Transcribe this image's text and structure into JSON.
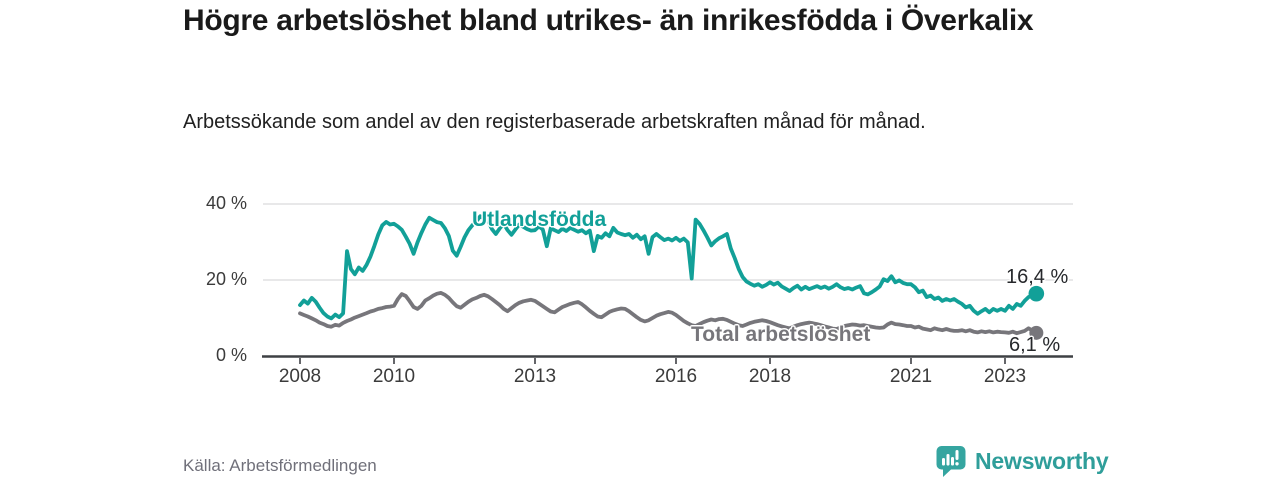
{
  "header": {
    "title": "Högre arbetslöshet bland utrikes- än inrikesfödda i Överkalix",
    "subtitle": "Arbetssökande som andel av den registerbaserade arbetskraften månad för månad."
  },
  "footer": {
    "source": "Källa: Arbetsförmedlingen",
    "brand": "Newsworthy",
    "brand_color": "#2f9e9a"
  },
  "chart_data": {
    "type": "line",
    "title": "Högre arbetslöshet bland utrikes- än inrikesfödda i Överkalix",
    "xlabel": "",
    "ylabel": "",
    "grid": "horizontal",
    "legend_position": "inline-labels",
    "ylim": [
      0,
      43
    ],
    "y_ticks": [
      {
        "label": "0 %",
        "value": 0
      },
      {
        "label": "20 %",
        "value": 20
      },
      {
        "label": "40 %",
        "value": 40
      }
    ],
    "x_ticks": [
      {
        "label": "2008",
        "year": 2008
      },
      {
        "label": "2010",
        "year": 2010
      },
      {
        "label": "2013",
        "year": 2013
      },
      {
        "label": "2016",
        "year": 2016
      },
      {
        "label": "2018",
        "year": 2018
      },
      {
        "label": "2021",
        "year": 2021
      },
      {
        "label": "2023",
        "year": 2023
      }
    ],
    "start_year": 2008,
    "points_per_year": 12,
    "series": [
      {
        "name": "Utlandsfödda",
        "color": "#12a098",
        "end_label": "16,4 %",
        "end_value": 16.4,
        "values": [
          13.4,
          14.6,
          13.8,
          15.3,
          14.3,
          12.7,
          11.3,
          10.4,
          9.9,
          10.9,
          10.2,
          11.2,
          27.6,
          22.9,
          21.5,
          23.3,
          22.4,
          24.0,
          26.2,
          29.0,
          32.0,
          34.4,
          35.3,
          34.6,
          34.8,
          34.1,
          33.2,
          31.4,
          29.5,
          26.9,
          29.9,
          32.4,
          34.6,
          36.4,
          35.8,
          35.2,
          35.0,
          33.6,
          31.6,
          27.7,
          26.4,
          28.7,
          31.2,
          33.1,
          34.4,
          35.4,
          36.8,
          36.1,
          35.5,
          33.4,
          32.1,
          33.6,
          34.8,
          33.1,
          31.9,
          33.3,
          34.6,
          34.0,
          33.4,
          33.0,
          33.1,
          34.1,
          33.3,
          28.9,
          33.6,
          33.1,
          32.6,
          33.5,
          32.9,
          33.7,
          33.2,
          32.7,
          33.1,
          32.3,
          33.0,
          27.6,
          31.6,
          31.1,
          32.3,
          31.5,
          33.7,
          32.5,
          32.1,
          31.8,
          32.1,
          31.1,
          31.9,
          30.7,
          31.5,
          26.9,
          31.3,
          32.1,
          31.3,
          30.5,
          30.9,
          30.4,
          31.1,
          30.3,
          30.9,
          29.9,
          20.4,
          35.9,
          34.8,
          33.1,
          31.2,
          29.1,
          30.2,
          31.0,
          31.5,
          32.1,
          28.3,
          25.7,
          22.9,
          20.8,
          19.6,
          19.0,
          18.5,
          18.9,
          18.2,
          18.7,
          19.4,
          18.8,
          19.3,
          18.3,
          17.7,
          17.1,
          17.9,
          18.5,
          17.5,
          18.2,
          17.6,
          18.0,
          18.4,
          17.9,
          18.3,
          17.7,
          18.2,
          18.9,
          18.1,
          17.6,
          17.9,
          17.5,
          18.0,
          18.4,
          16.5,
          16.2,
          16.8,
          17.5,
          18.3,
          20.2,
          19.7,
          21.0,
          19.4,
          19.9,
          19.2,
          18.9,
          18.9,
          18.1,
          16.8,
          17.2,
          15.5,
          15.9,
          15.0,
          15.4,
          14.5,
          15.0,
          14.6,
          15.0,
          14.3,
          13.7,
          12.8,
          13.2,
          11.9,
          11.1,
          11.8,
          12.4,
          11.5,
          12.4,
          11.9,
          12.4,
          11.9,
          13.2,
          12.4,
          13.7,
          13.2,
          14.5,
          15.5,
          16.0,
          16.4
        ]
      },
      {
        "name": "Total arbetslöshet",
        "color": "#77767b",
        "end_label": "6,1 %",
        "end_value": 6.1,
        "values": [
          11.2,
          10.8,
          10.4,
          9.9,
          9.4,
          8.8,
          8.4,
          7.9,
          7.7,
          8.2,
          8.0,
          8.7,
          9.2,
          9.6,
          10.1,
          10.5,
          10.9,
          11.3,
          11.7,
          12.0,
          12.4,
          12.6,
          12.9,
          13.0,
          13.2,
          15.0,
          16.3,
          15.8,
          14.4,
          12.9,
          12.4,
          13.2,
          14.6,
          15.2,
          15.9,
          16.4,
          16.6,
          16.1,
          15.3,
          14.1,
          13.1,
          12.7,
          13.5,
          14.3,
          14.9,
          15.3,
          15.8,
          16.1,
          15.7,
          15.0,
          14.2,
          13.4,
          12.4,
          11.8,
          12.6,
          13.4,
          14.0,
          14.4,
          14.6,
          14.8,
          14.5,
          13.8,
          13.1,
          12.4,
          11.7,
          11.5,
          12.2,
          12.9,
          13.3,
          13.7,
          14.0,
          14.2,
          13.6,
          12.8,
          11.9,
          11.1,
          10.4,
          10.2,
          10.9,
          11.6,
          12.0,
          12.3,
          12.5,
          12.4,
          11.8,
          11.0,
          10.2,
          9.5,
          9.1,
          9.4,
          10.0,
          10.6,
          11.0,
          11.3,
          11.6,
          11.4,
          10.8,
          10.0,
          9.2,
          8.6,
          8.1,
          7.9,
          8.4,
          8.9,
          9.3,
          9.6,
          9.4,
          9.7,
          9.8,
          9.5,
          9.0,
          8.5,
          8.1,
          7.9,
          8.3,
          8.7,
          9.0,
          9.2,
          9.4,
          9.2,
          8.9,
          8.5,
          8.1,
          7.8,
          7.5,
          7.3,
          7.7,
          8.1,
          8.4,
          8.6,
          8.8,
          8.6,
          8.4,
          8.1,
          7.8,
          7.5,
          7.2,
          7.1,
          7.5,
          7.9,
          8.1,
          8.3,
          8.2,
          8.0,
          8.1,
          7.9,
          7.7,
          7.5,
          7.4,
          7.5,
          8.3,
          8.8,
          8.4,
          8.3,
          8.1,
          7.9,
          7.9,
          7.5,
          7.7,
          7.2,
          7.0,
          6.8,
          7.3,
          7.0,
          6.8,
          7.1,
          6.8,
          6.6,
          6.6,
          6.8,
          6.5,
          6.8,
          6.4,
          6.2,
          6.5,
          6.3,
          6.5,
          6.2,
          6.4,
          6.3,
          6.2,
          6.1,
          6.4,
          6.0,
          6.3,
          6.6,
          7.3,
          6.7,
          6.1
        ]
      }
    ]
  }
}
